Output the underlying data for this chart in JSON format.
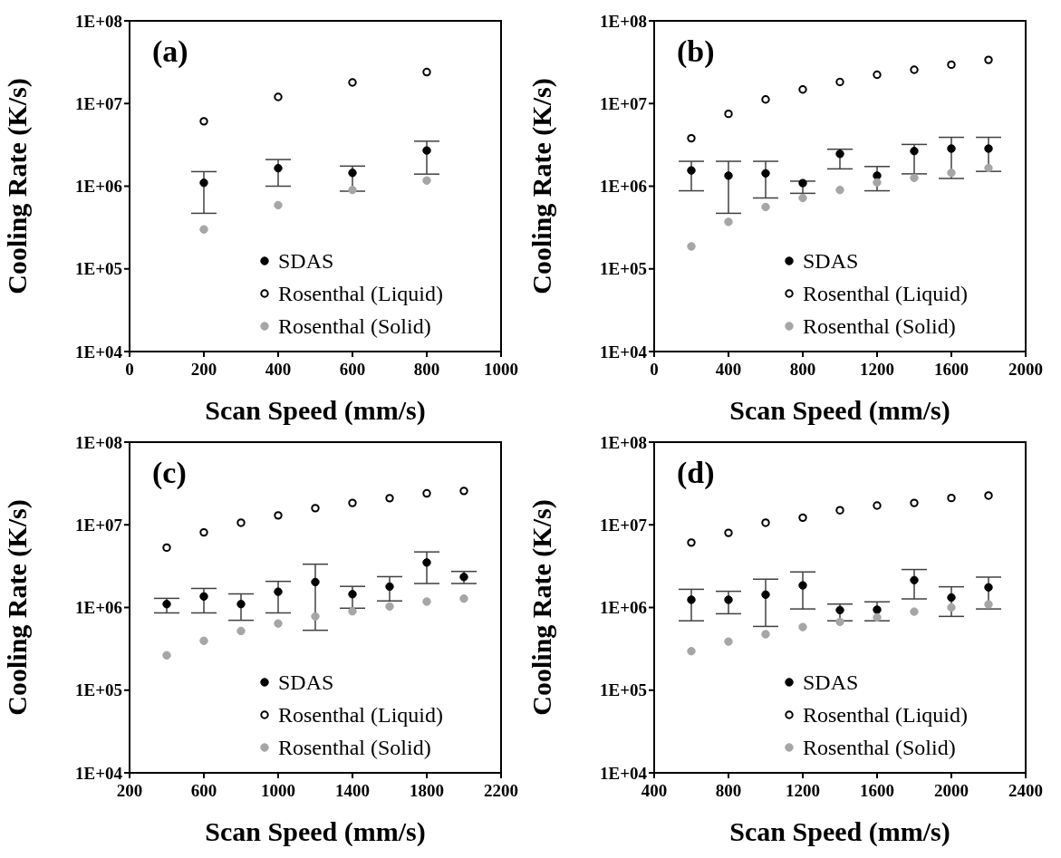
{
  "chart_data": [
    {
      "type": "scatter",
      "title": "(a)",
      "xlabel": "Scan Speed (mm/s)",
      "ylabel": "Cooling Rate (K/s)",
      "log": "y",
      "legend": "bottom",
      "grid": false,
      "marker": "circle",
      "xlim": [
        0,
        1000
      ],
      "xticks": [
        0,
        200,
        400,
        600,
        800,
        1000
      ],
      "ylim": [
        10000,
        100000000
      ],
      "yticks": [
        {
          "value": 10000,
          "label": "1E+04"
        },
        {
          "value": 100000,
          "label": "1E+05"
        },
        {
          "value": 1000000,
          "label": "1E+06"
        },
        {
          "value": 10000000,
          "label": "1E+07"
        },
        {
          "value": 100000000,
          "label": "1E+08"
        }
      ],
      "x": [
        200,
        400,
        600,
        800
      ],
      "series": [
        {
          "name": "SDAS",
          "color": "#000000",
          "values": [
            1100000,
            1650000,
            1450000,
            2700000
          ],
          "errors": [
            [
              470000,
              1500000
            ],
            [
              1000000,
              2100000
            ],
            [
              870000,
              1750000
            ],
            [
              1400000,
              3500000
            ]
          ]
        },
        {
          "name": "Rosenthal (Liquid)",
          "color": "#000000",
          "marker": "circle-open",
          "values": [
            6100000,
            12000000,
            18000000,
            24000000
          ]
        },
        {
          "name": "Rosenthal (Solid)",
          "color": "#a6a6a6",
          "values": [
            300000,
            590000,
            900000,
            1170000
          ]
        }
      ]
    },
    {
      "type": "scatter",
      "title": "(b)",
      "xlabel": "Scan Speed (mm/s)",
      "ylabel": "Cooling Rate (K/s)",
      "log": "y",
      "legend": "bottom",
      "grid": false,
      "marker": "circle",
      "xlim": [
        0,
        2000
      ],
      "xticks": [
        0,
        400,
        800,
        1200,
        1600,
        2000
      ],
      "ylim": [
        10000,
        100000000
      ],
      "yticks": [
        {
          "value": 10000,
          "label": "1E+04"
        },
        {
          "value": 100000,
          "label": "1E+05"
        },
        {
          "value": 1000000,
          "label": "1E+06"
        },
        {
          "value": 10000000,
          "label": "1E+07"
        },
        {
          "value": 100000000,
          "label": "1E+08"
        }
      ],
      "x": [
        200,
        400,
        600,
        800,
        1000,
        1200,
        1400,
        1600,
        1800
      ],
      "series": [
        {
          "name": "SDAS",
          "color": "#000000",
          "values": [
            1550000,
            1340000,
            1430000,
            1090000,
            2460000,
            1340000,
            2660000,
            2850000,
            2850000
          ],
          "errors": [
            [
              880000,
              2000000
            ],
            [
              470000,
              2000000
            ],
            [
              720000,
              2000000
            ],
            [
              820000,
              1150000
            ],
            [
              1620000,
              2800000
            ],
            [
              880000,
              1730000
            ],
            [
              1410000,
              3200000
            ],
            [
              1240000,
              3900000
            ],
            [
              1510000,
              3900000
            ]
          ]
        },
        {
          "name": "Rosenthal (Liquid)",
          "color": "#000000",
          "marker": "circle-open",
          "values": [
            3800000,
            7500000,
            11200000,
            14800000,
            18200000,
            22300000,
            25600000,
            29500000,
            33700000
          ]
        },
        {
          "name": "Rosenthal (Solid)",
          "color": "#a6a6a6",
          "values": [
            187000,
            370000,
            560000,
            720000,
            900000,
            1110000,
            1260000,
            1450000,
            1660000
          ]
        }
      ]
    },
    {
      "type": "scatter",
      "title": "(c)",
      "xlabel": "Scan Speed (mm/s)",
      "ylabel": "Cooling Rate (K/s)",
      "log": "y",
      "legend": "bottom",
      "grid": false,
      "marker": "circle",
      "xlim": [
        200,
        2200
      ],
      "xticks": [
        200,
        600,
        1000,
        1400,
        1800,
        2200
      ],
      "ylim": [
        10000,
        100000000
      ],
      "yticks": [
        {
          "value": 10000,
          "label": "1E+04"
        },
        {
          "value": 100000,
          "label": "1E+05"
        },
        {
          "value": 1000000,
          "label": "1E+06"
        },
        {
          "value": 10000000,
          "label": "1E+07"
        },
        {
          "value": 100000000,
          "label": "1E+08"
        }
      ],
      "x": [
        400,
        600,
        800,
        1000,
        1200,
        1400,
        1600,
        1800,
        2000
      ],
      "series": [
        {
          "name": "SDAS",
          "color": "#000000",
          "values": [
            1100000,
            1360000,
            1100000,
            1550000,
            2030000,
            1450000,
            1790000,
            3500000,
            2340000
          ],
          "errors": [
            [
              860000,
              1290000
            ],
            [
              860000,
              1700000
            ],
            [
              700000,
              1460000
            ],
            [
              860000,
              2070000
            ],
            [
              530000,
              3340000
            ],
            [
              980000,
              1800000
            ],
            [
              1200000,
              2360000
            ],
            [
              1950000,
              4700000
            ],
            [
              1950000,
              2730000
            ]
          ]
        },
        {
          "name": "Rosenthal (Liquid)",
          "color": "#000000",
          "marker": "circle-open",
          "values": [
            5300000,
            8100000,
            10600000,
            13000000,
            15900000,
            18400000,
            21000000,
            24000000,
            25700000
          ]
        },
        {
          "name": "Rosenthal (Solid)",
          "color": "#a6a6a6",
          "values": [
            264000,
            395000,
            520000,
            640000,
            780000,
            900000,
            1030000,
            1180000,
            1280000
          ]
        }
      ]
    },
    {
      "type": "scatter",
      "title": "(d)",
      "xlabel": "Scan Speed (mm/s)",
      "ylabel": "Cooling Rate (K/s)",
      "log": "y",
      "legend": "bottom",
      "grid": false,
      "marker": "circle",
      "xlim": [
        400,
        2400
      ],
      "xticks": [
        400,
        800,
        1200,
        1600,
        2000,
        2400
      ],
      "ylim": [
        10000,
        100000000
      ],
      "yticks": [
        {
          "value": 10000,
          "label": "1E+04"
        },
        {
          "value": 100000,
          "label": "1E+05"
        },
        {
          "value": 1000000,
          "label": "1E+06"
        },
        {
          "value": 10000000,
          "label": "1E+07"
        },
        {
          "value": 100000000,
          "label": "1E+08"
        }
      ],
      "x": [
        600,
        800,
        1000,
        1200,
        1400,
        1600,
        1800,
        2000,
        2200
      ],
      "series": [
        {
          "name": "SDAS",
          "color": "#000000",
          "values": [
            1240000,
            1240000,
            1430000,
            1850000,
            930000,
            940000,
            2140000,
            1320000,
            1750000
          ],
          "errors": [
            [
              690000,
              1660000
            ],
            [
              840000,
              1570000
            ],
            [
              590000,
              2200000
            ],
            [
              960000,
              2690000
            ],
            [
              690000,
              1100000
            ],
            [
              690000,
              1170000
            ],
            [
              1270000,
              2880000
            ],
            [
              780000,
              1780000
            ],
            [
              960000,
              2330000
            ]
          ]
        },
        {
          "name": "Rosenthal (Liquid)",
          "color": "#000000",
          "marker": "circle-open",
          "values": [
            6100000,
            8000000,
            10600000,
            12200000,
            15000000,
            17100000,
            18400000,
            21100000,
            22600000
          ]
        },
        {
          "name": "Rosenthal (Solid)",
          "color": "#a6a6a6",
          "values": [
            296000,
            387000,
            475000,
            580000,
            670000,
            760000,
            890000,
            1000000,
            1090000
          ]
        }
      ]
    }
  ]
}
